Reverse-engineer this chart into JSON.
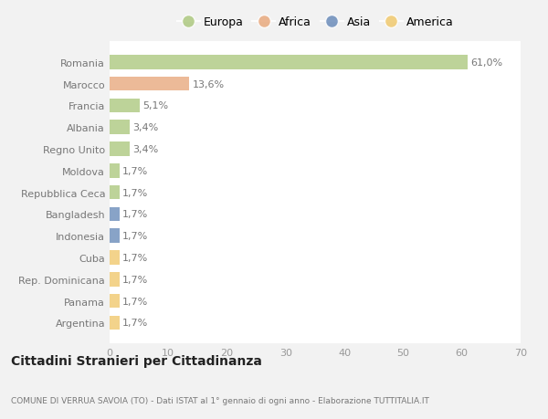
{
  "categories": [
    "Romania",
    "Marocco",
    "Francia",
    "Albania",
    "Regno Unito",
    "Moldova",
    "Repubblica Ceca",
    "Bangladesh",
    "Indonesia",
    "Cuba",
    "Rep. Dominicana",
    "Panama",
    "Argentina"
  ],
  "values": [
    61.0,
    13.6,
    5.1,
    3.4,
    3.4,
    1.7,
    1.7,
    1.7,
    1.7,
    1.7,
    1.7,
    1.7,
    1.7
  ],
  "labels": [
    "61,0%",
    "13,6%",
    "5,1%",
    "3,4%",
    "3,4%",
    "1,7%",
    "1,7%",
    "1,7%",
    "1,7%",
    "1,7%",
    "1,7%",
    "1,7%",
    "1,7%"
  ],
  "colors": [
    "#adc880",
    "#e8a97e",
    "#adc880",
    "#adc880",
    "#adc880",
    "#adc880",
    "#adc880",
    "#6b8cba",
    "#6b8cba",
    "#f0c96e",
    "#f0c96e",
    "#f0c96e",
    "#f0c96e"
  ],
  "legend_labels": [
    "Europa",
    "Africa",
    "Asia",
    "America"
  ],
  "legend_colors": [
    "#adc880",
    "#e8a97e",
    "#6b8cba",
    "#f0c96e"
  ],
  "xlim": [
    0,
    70
  ],
  "xticks": [
    0,
    10,
    20,
    30,
    40,
    50,
    60,
    70
  ],
  "title": "Cittadini Stranieri per Cittadinanza",
  "subtitle": "COMUNE DI VERRUA SAVOIA (TO) - Dati ISTAT al 1° gennaio di ogni anno - Elaborazione TUTTITALIA.IT",
  "bg_color": "#f2f2f2",
  "plot_bg_color": "#ffffff",
  "grid_color": "#ffffff",
  "bar_height": 0.65,
  "label_color": "#777777",
  "tick_color": "#999999"
}
